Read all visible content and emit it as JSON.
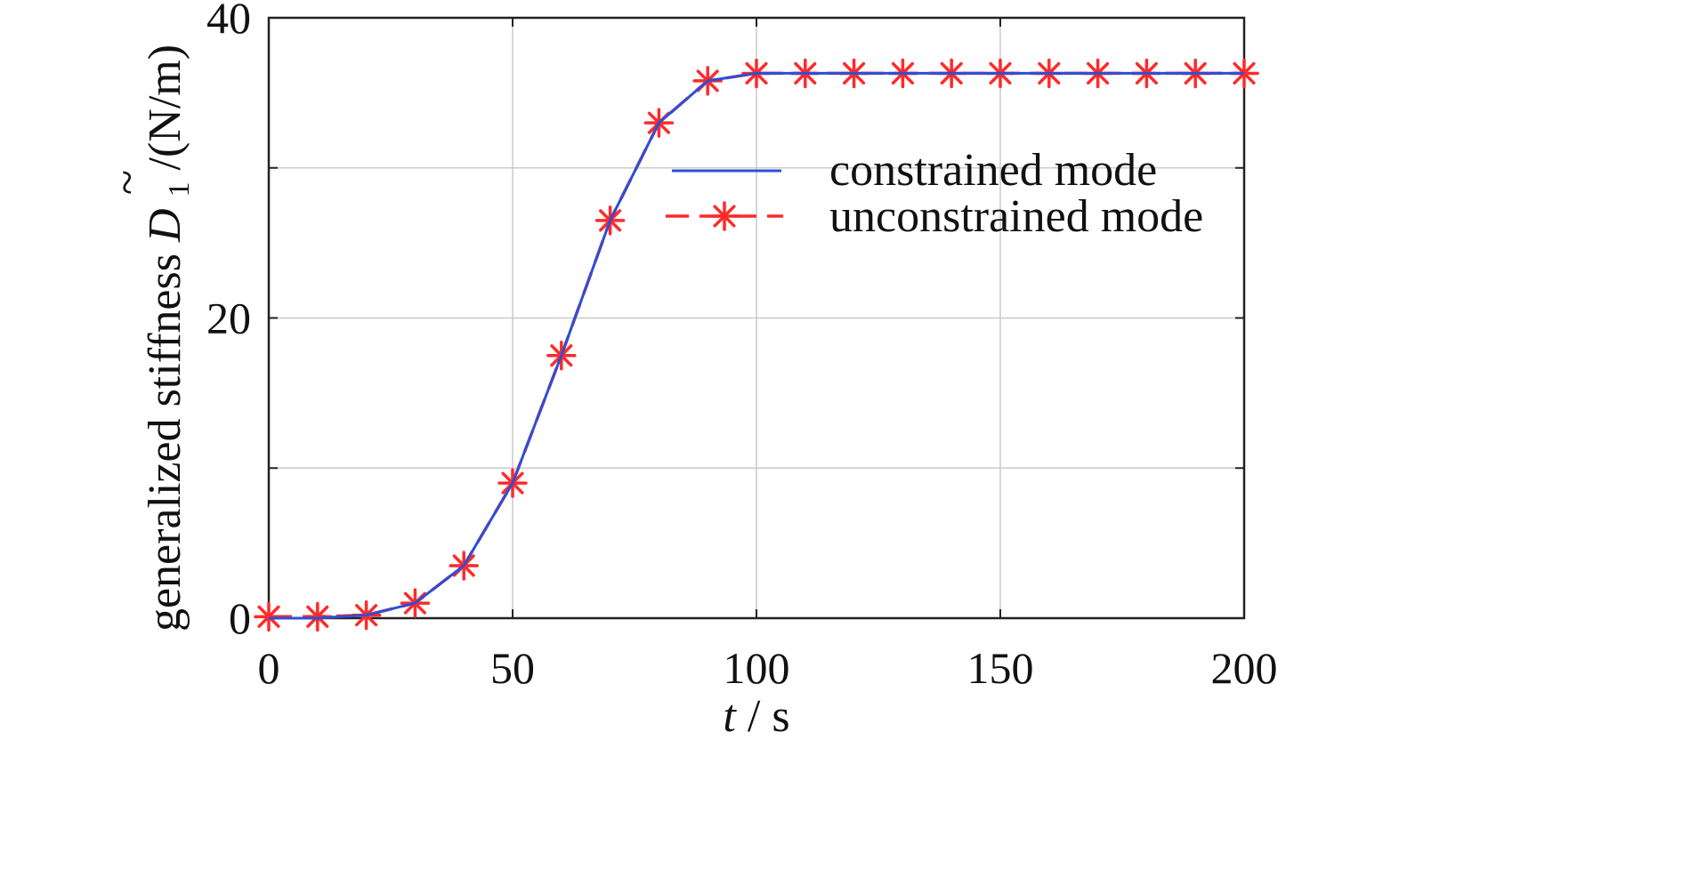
{
  "chart_data": {
    "type": "line",
    "xlabel": "t / s",
    "xlabel_var": "t",
    "xlabel_unit": "/ s",
    "ylabel": "generalized stiffness D̃1 /(N/m)",
    "ylabel_prefix": "generalized stiffness ",
    "ylabel_symbol": "D",
    "ylabel_tilde": "~",
    "ylabel_subscript": "1",
    "ylabel_unit": " /(N/m)",
    "xlim": [
      0,
      200
    ],
    "ylim": [
      0,
      40
    ],
    "x_ticks": [
      "0",
      "50",
      "100",
      "150",
      "200"
    ],
    "y_ticks": [
      "0",
      "20",
      "40"
    ],
    "grid": true,
    "legend_position": "center-right",
    "series": [
      {
        "name": "constrained mode",
        "color": "#2b4fd6",
        "style": "solid",
        "x": [
          0,
          10,
          20,
          30,
          40,
          50,
          60,
          70,
          80,
          90,
          100,
          110,
          120,
          130,
          140,
          150,
          160,
          170,
          180,
          190,
          200
        ],
        "y": [
          0,
          0,
          0.2,
          1,
          3.5,
          9,
          17.5,
          26.5,
          33,
          35.8,
          36.3,
          36.3,
          36.3,
          36.3,
          36.3,
          36.3,
          36.3,
          36.3,
          36.3,
          36.3,
          36.3
        ]
      },
      {
        "name": "unconstrained mode",
        "color": "#ff2a2a",
        "style": "dashed",
        "marker": "asterisk",
        "x": [
          0,
          10,
          20,
          30,
          40,
          50,
          60,
          70,
          80,
          90,
          100,
          110,
          120,
          130,
          140,
          150,
          160,
          170,
          180,
          190,
          200
        ],
        "y": [
          0.1,
          0.1,
          0.2,
          1,
          3.5,
          9,
          17.5,
          26.5,
          33,
          35.8,
          36.3,
          36.3,
          36.3,
          36.3,
          36.3,
          36.3,
          36.3,
          36.3,
          36.3,
          36.3,
          36.3
        ]
      }
    ]
  }
}
